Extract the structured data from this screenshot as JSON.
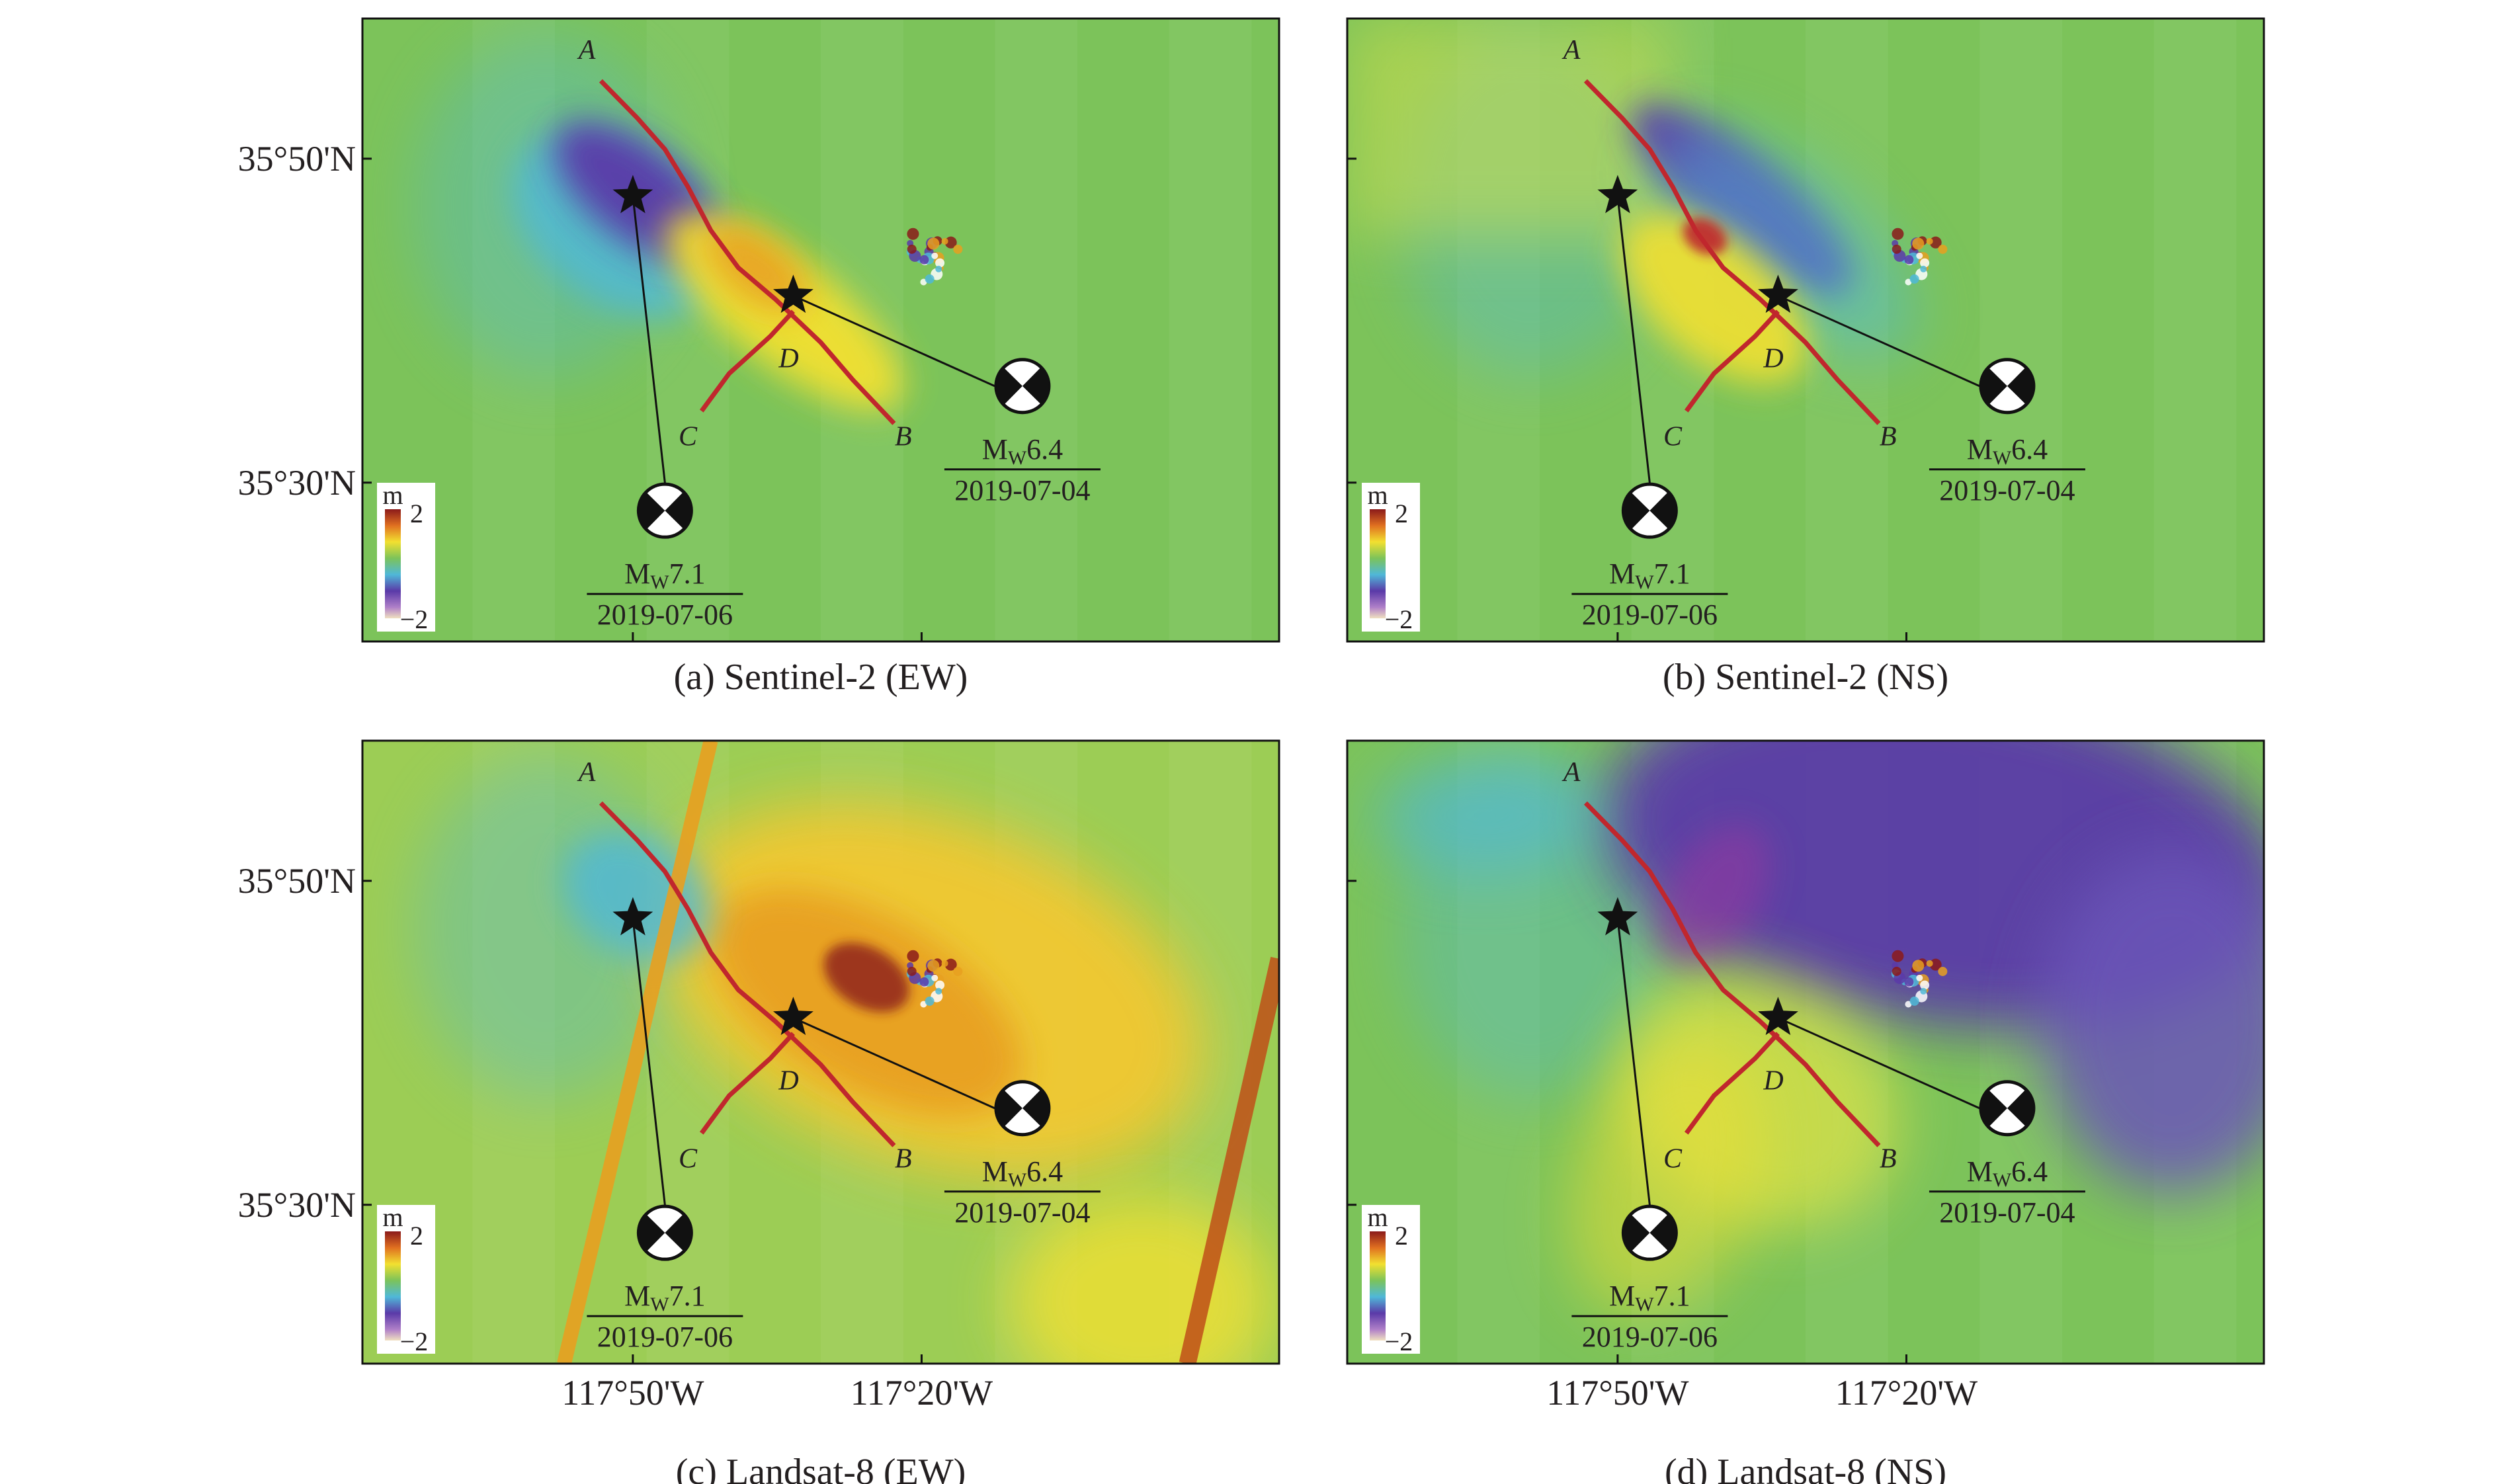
{
  "figure": {
    "latitude_ticks": [
      "35°50'N",
      "35°30'N"
    ],
    "longitude_ticks": [
      "117°50'W",
      "117°20'W"
    ],
    "fault_points": [
      "A",
      "B",
      "C",
      "D"
    ],
    "colorbar": {
      "unit": "m",
      "max": "2",
      "min": "−2"
    },
    "events": [
      {
        "magnitude_main": "M",
        "magnitude_sub": "W",
        "magnitude_value": "7.1",
        "date": "2019-07-06"
      },
      {
        "magnitude_main": "M",
        "magnitude_sub": "W",
        "magnitude_value": "6.4",
        "date": "2019-07-04"
      }
    ],
    "colors": {
      "fault": "#c0272d",
      "background_green": "#7cc35a",
      "negative": "#5a3aa8",
      "positive": "#e8a020"
    }
  },
  "panels": [
    {
      "caption": "(a) Sentinel-2 (EW)",
      "pattern": "ew-small"
    },
    {
      "caption": "(b) Sentinel-2 (NS)",
      "pattern": "ns-small"
    },
    {
      "caption": "(c) Landsat-8 (EW)",
      "pattern": "ew-large"
    },
    {
      "caption": "(d) Landsat-8 (NS)",
      "pattern": "ns-large"
    }
  ]
}
